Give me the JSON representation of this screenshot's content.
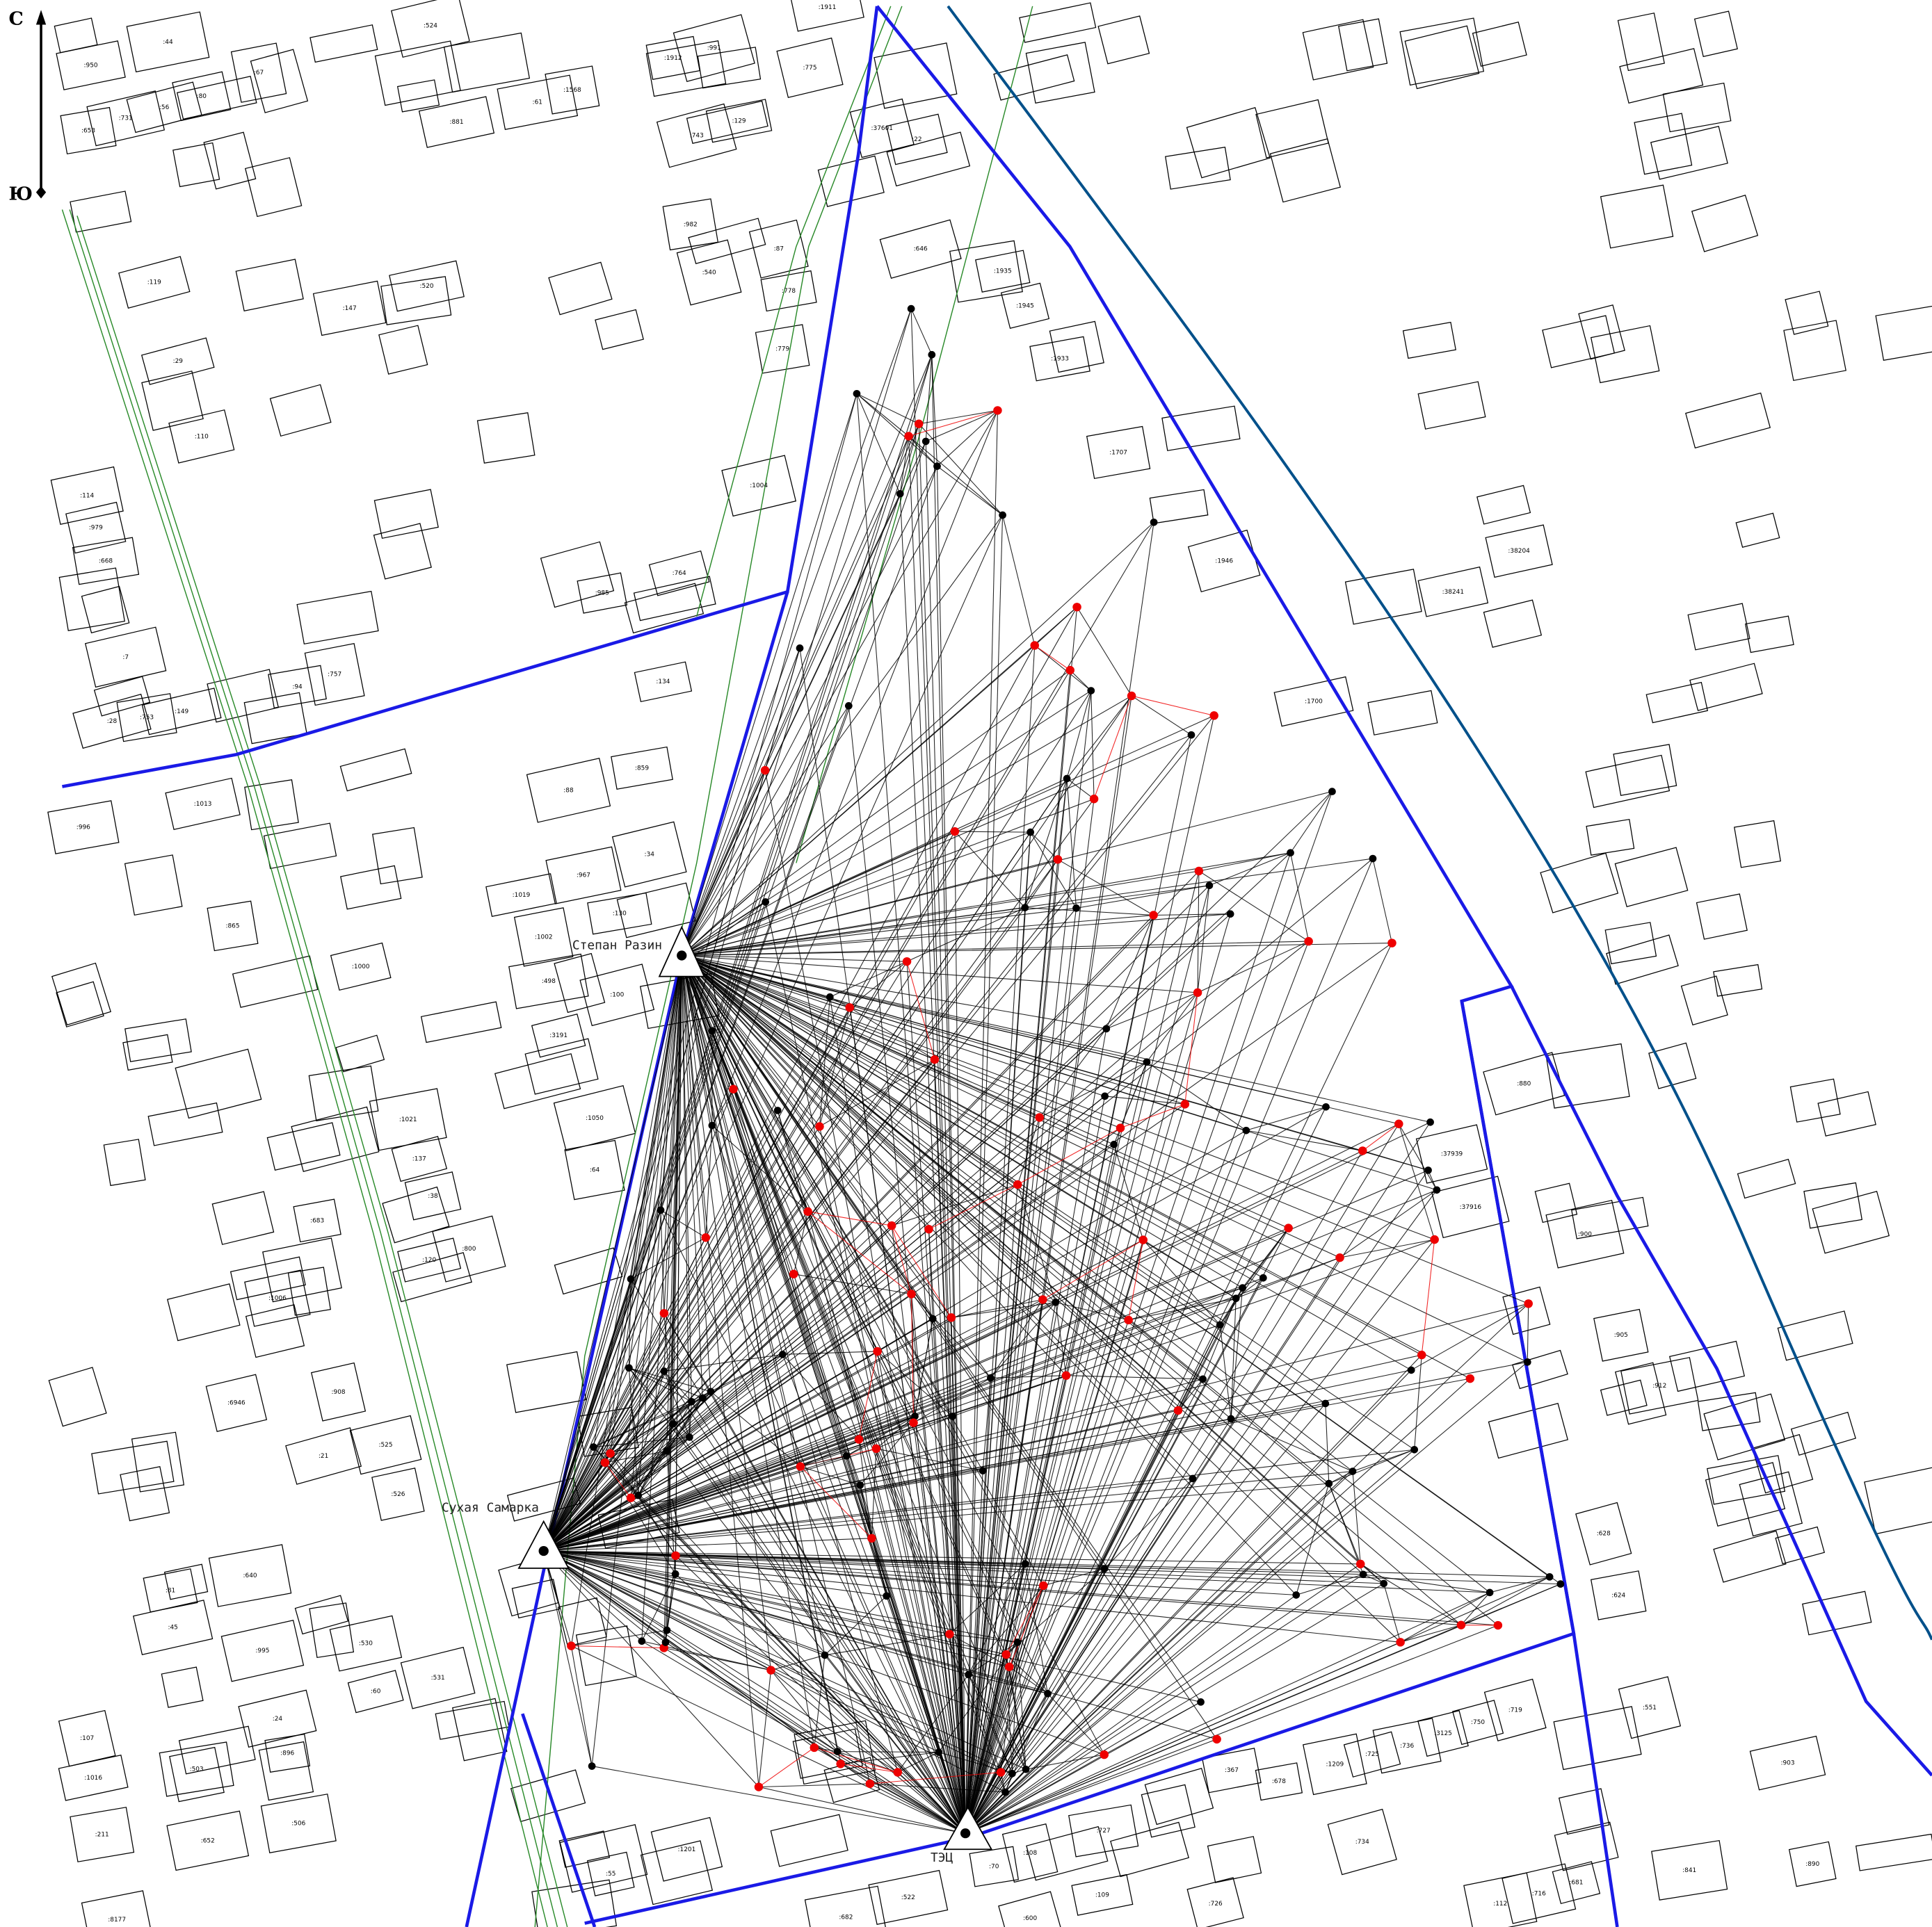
{
  "compass": {
    "north": "С",
    "south": "Ю"
  },
  "stations": [
    "Степан Разин",
    "Сухая Самарка",
    "ТЭЦ"
  ],
  "parcel_labels": [
    ":950",
    ":44",
    ":67",
    ":524",
    ":1911",
    ":1912",
    ":991",
    ":775",
    ":653",
    ":731",
    ":56",
    ":80",
    ":61",
    ":1568",
    ":881",
    ":743",
    ":129",
    ":37601",
    ":22",
    ":646",
    ":1935",
    ":1945",
    ":1933",
    ":1707",
    ":1946",
    ":38204",
    ":38241",
    ":1700",
    ":880",
    ":37939",
    ":37916",
    ":900",
    ":905",
    ":912",
    ":628",
    ":624",
    ":551",
    ":903",
    ":890",
    ":841",
    ":1201",
    ":55",
    ":8177",
    ":211",
    ":1016",
    ":107",
    ":6946",
    ":1000",
    ":865",
    ":996",
    ":1013",
    ":859",
    ":134",
    ":764",
    ":985",
    ":1004",
    ":779",
    ":778",
    ":540",
    ":982",
    ":87",
    ":520",
    ":147",
    ":119",
    ":29",
    ":110",
    ":114",
    ":979",
    ":668",
    ":7",
    ":28",
    ":753",
    ":149",
    ":94",
    ":757",
    ":88",
    ":34",
    ":967",
    ":130",
    ":1019",
    ":1002",
    ":498",
    ":3191",
    ":1050",
    ":64",
    ":100",
    ":1021",
    ":137",
    ":38",
    ":120",
    ":800",
    ":683",
    ":1006",
    ":908",
    ":525",
    ":526",
    ":21",
    ":640",
    ":81",
    ":45",
    ":995",
    ":530",
    ":531",
    ":60",
    ":24",
    ":896",
    ":503",
    ":506",
    ":652",
    ":108",
    ":727",
    ":109",
    ":70",
    ":600",
    ":522",
    ":682",
    ":367",
    ":678",
    ":1209",
    ":725",
    ":736",
    ":3125",
    ":750",
    ":719",
    ":734",
    ":716",
    ":681",
    ":112",
    ":726"
  ]
}
